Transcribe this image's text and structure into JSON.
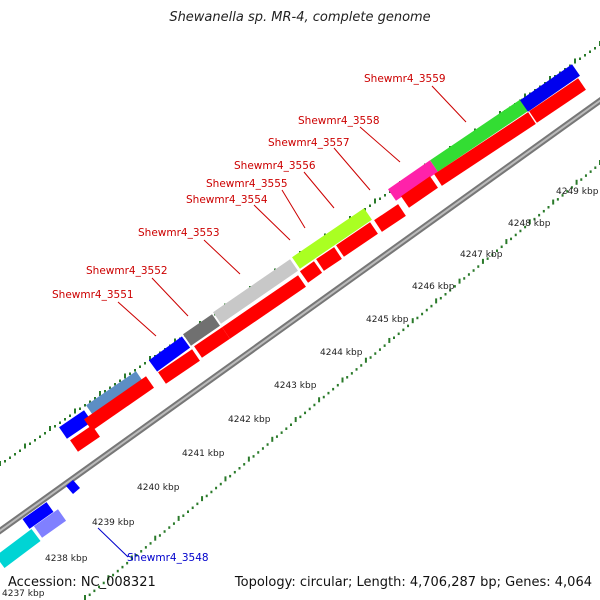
{
  "title": "Shewanella sp. MR-4, complete genome",
  "footer": {
    "accession": "Accession: NC_008321",
    "summary": "Topology: circular; Length: 4,706,287 bp; Genes: 4,064"
  },
  "colors": {
    "backbone": "#888888",
    "tick": "#2a7a2a",
    "reverse_gene": "#ff0000",
    "label_red": "#cc0000",
    "label_blue": "#0000cc"
  },
  "kbp_labels": [
    "4237 kbp",
    "4238 kbp",
    "4239 kbp",
    "4240 kbp",
    "4241 kbp",
    "4242 kbp",
    "4243 kbp",
    "4244 kbp",
    "4245 kbp",
    "4246 kbp",
    "4247 kbp",
    "4248 kbp",
    "4249 kbp"
  ],
  "gene_labels": [
    {
      "text": "Shewmr4_3548",
      "color": "blue"
    },
    {
      "text": "Shewmr4_3551",
      "color": "red"
    },
    {
      "text": "Shewmr4_3552",
      "color": "red"
    },
    {
      "text": "Shewmr4_3553",
      "color": "red"
    },
    {
      "text": "Shewmr4_3554",
      "color": "red"
    },
    {
      "text": "Shewmr4_3555",
      "color": "red"
    },
    {
      "text": "Shewmr4_3556",
      "color": "red"
    },
    {
      "text": "Shewmr4_3557",
      "color": "red"
    },
    {
      "text": "Shewmr4_3558",
      "color": "red"
    },
    {
      "text": "Shewmr4_3559",
      "color": "red"
    }
  ]
}
